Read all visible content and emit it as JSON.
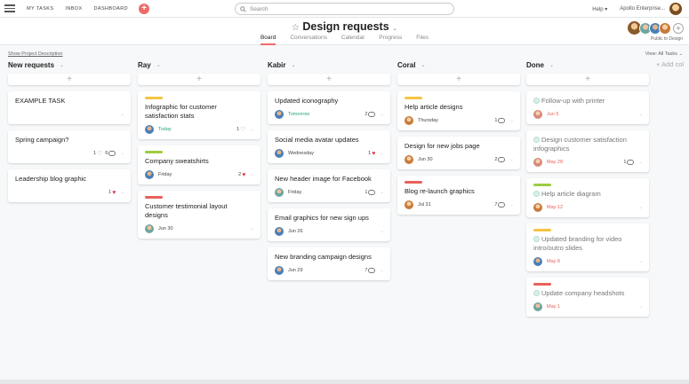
{
  "topbar": {
    "nav": [
      "MY TASKS",
      "INBOX",
      "DASHBOARD"
    ],
    "add_label": "+",
    "search_placeholder": "Search",
    "help": "Help ▾",
    "org": "Apollo Enterprise..."
  },
  "project": {
    "title": "Design requests",
    "star": "☆",
    "caret": "⌄",
    "tabs": [
      "Board",
      "Conversations",
      "Calendar",
      "Progress",
      "Files"
    ],
    "active_tab": "Board",
    "public_label": "Public to Design",
    "show_description": "Show Project Description",
    "view_filter": "View: All Tasks ⌄",
    "add_column": "+ Add col"
  },
  "columns": [
    {
      "name": "New requests",
      "cards": [
        {
          "title": "EXAMPLE TASK",
          "chevron_only": true
        },
        {
          "title": "Spring campaign?",
          "likes": "1",
          "comments": "6"
        },
        {
          "title": "Leadership blog graphic",
          "likes": "1",
          "liked": true
        }
      ]
    },
    {
      "name": "Ray",
      "cards": [
        {
          "title": "Infographic for customer satisfaction stats",
          "tag": "#f5c443",
          "due": "Today",
          "due_style": "green",
          "avatar": "a1",
          "likes": "1"
        },
        {
          "title": "Company sweatshirts",
          "tag": "#9ccc3f",
          "due": "Friday",
          "avatar": "a1",
          "likes": "2",
          "liked": true
        },
        {
          "title": "Customer testimonial layout designs",
          "tag": "#e8615b",
          "due": "Jun 30",
          "avatar": "a3"
        }
      ]
    },
    {
      "name": "Kabir",
      "cards": [
        {
          "title": "Updated iconography",
          "due": "Tomorrow",
          "due_style": "green",
          "avatar": "a1",
          "comments": "2"
        },
        {
          "title": "Social media avatar updates",
          "due": "Wednesday",
          "avatar": "a1",
          "likes": "1",
          "liked": true
        },
        {
          "title": "New header image for Facebook",
          "due": "Friday",
          "avatar": "a3",
          "comments": "1"
        },
        {
          "title": "Email graphics for new sign ups",
          "due": "Jun 26",
          "avatar": "a1"
        },
        {
          "title": "New branding campaign designs",
          "due": "Jun 29",
          "avatar": "a1",
          "comments": "7"
        }
      ]
    },
    {
      "name": "Coral",
      "cards": [
        {
          "title": "Help article designs",
          "tag": "#f5c443",
          "due": "Thursday",
          "avatar": "a4",
          "comments": "1"
        },
        {
          "title": "Design for new jobs page",
          "due": "Jun 30",
          "avatar": "a4",
          "comments": "2"
        },
        {
          "title": "Blog re-launch graphics",
          "tag": "#e8615b",
          "due": "Jul 31",
          "avatar": "a4",
          "comments": "7"
        }
      ]
    },
    {
      "name": "Done",
      "cards": [
        {
          "title": "Follow-up with printer",
          "done": true,
          "due": "Jun 5",
          "due_style": "red",
          "avatar": "a5"
        },
        {
          "title": "Design customer satisfaction infographics",
          "done": true,
          "due": "May 28",
          "due_style": "red",
          "avatar": "a5",
          "comments": "1"
        },
        {
          "title": "Help article diagram",
          "done": true,
          "tag": "#9ccc3f",
          "due": "May 12",
          "due_style": "red",
          "avatar": "a4"
        },
        {
          "title": "Updated branding for video intro/outro slides",
          "done": true,
          "tag": "#f5c443",
          "due": "May 8",
          "due_style": "red",
          "avatar": "a1"
        },
        {
          "title": "Update company headshots",
          "done": true,
          "tag": "#e8615b",
          "due": "May 1",
          "due_style": "red",
          "avatar": "a3"
        }
      ]
    }
  ],
  "add_card_label": "+",
  "chevron_glyph": "⌄"
}
